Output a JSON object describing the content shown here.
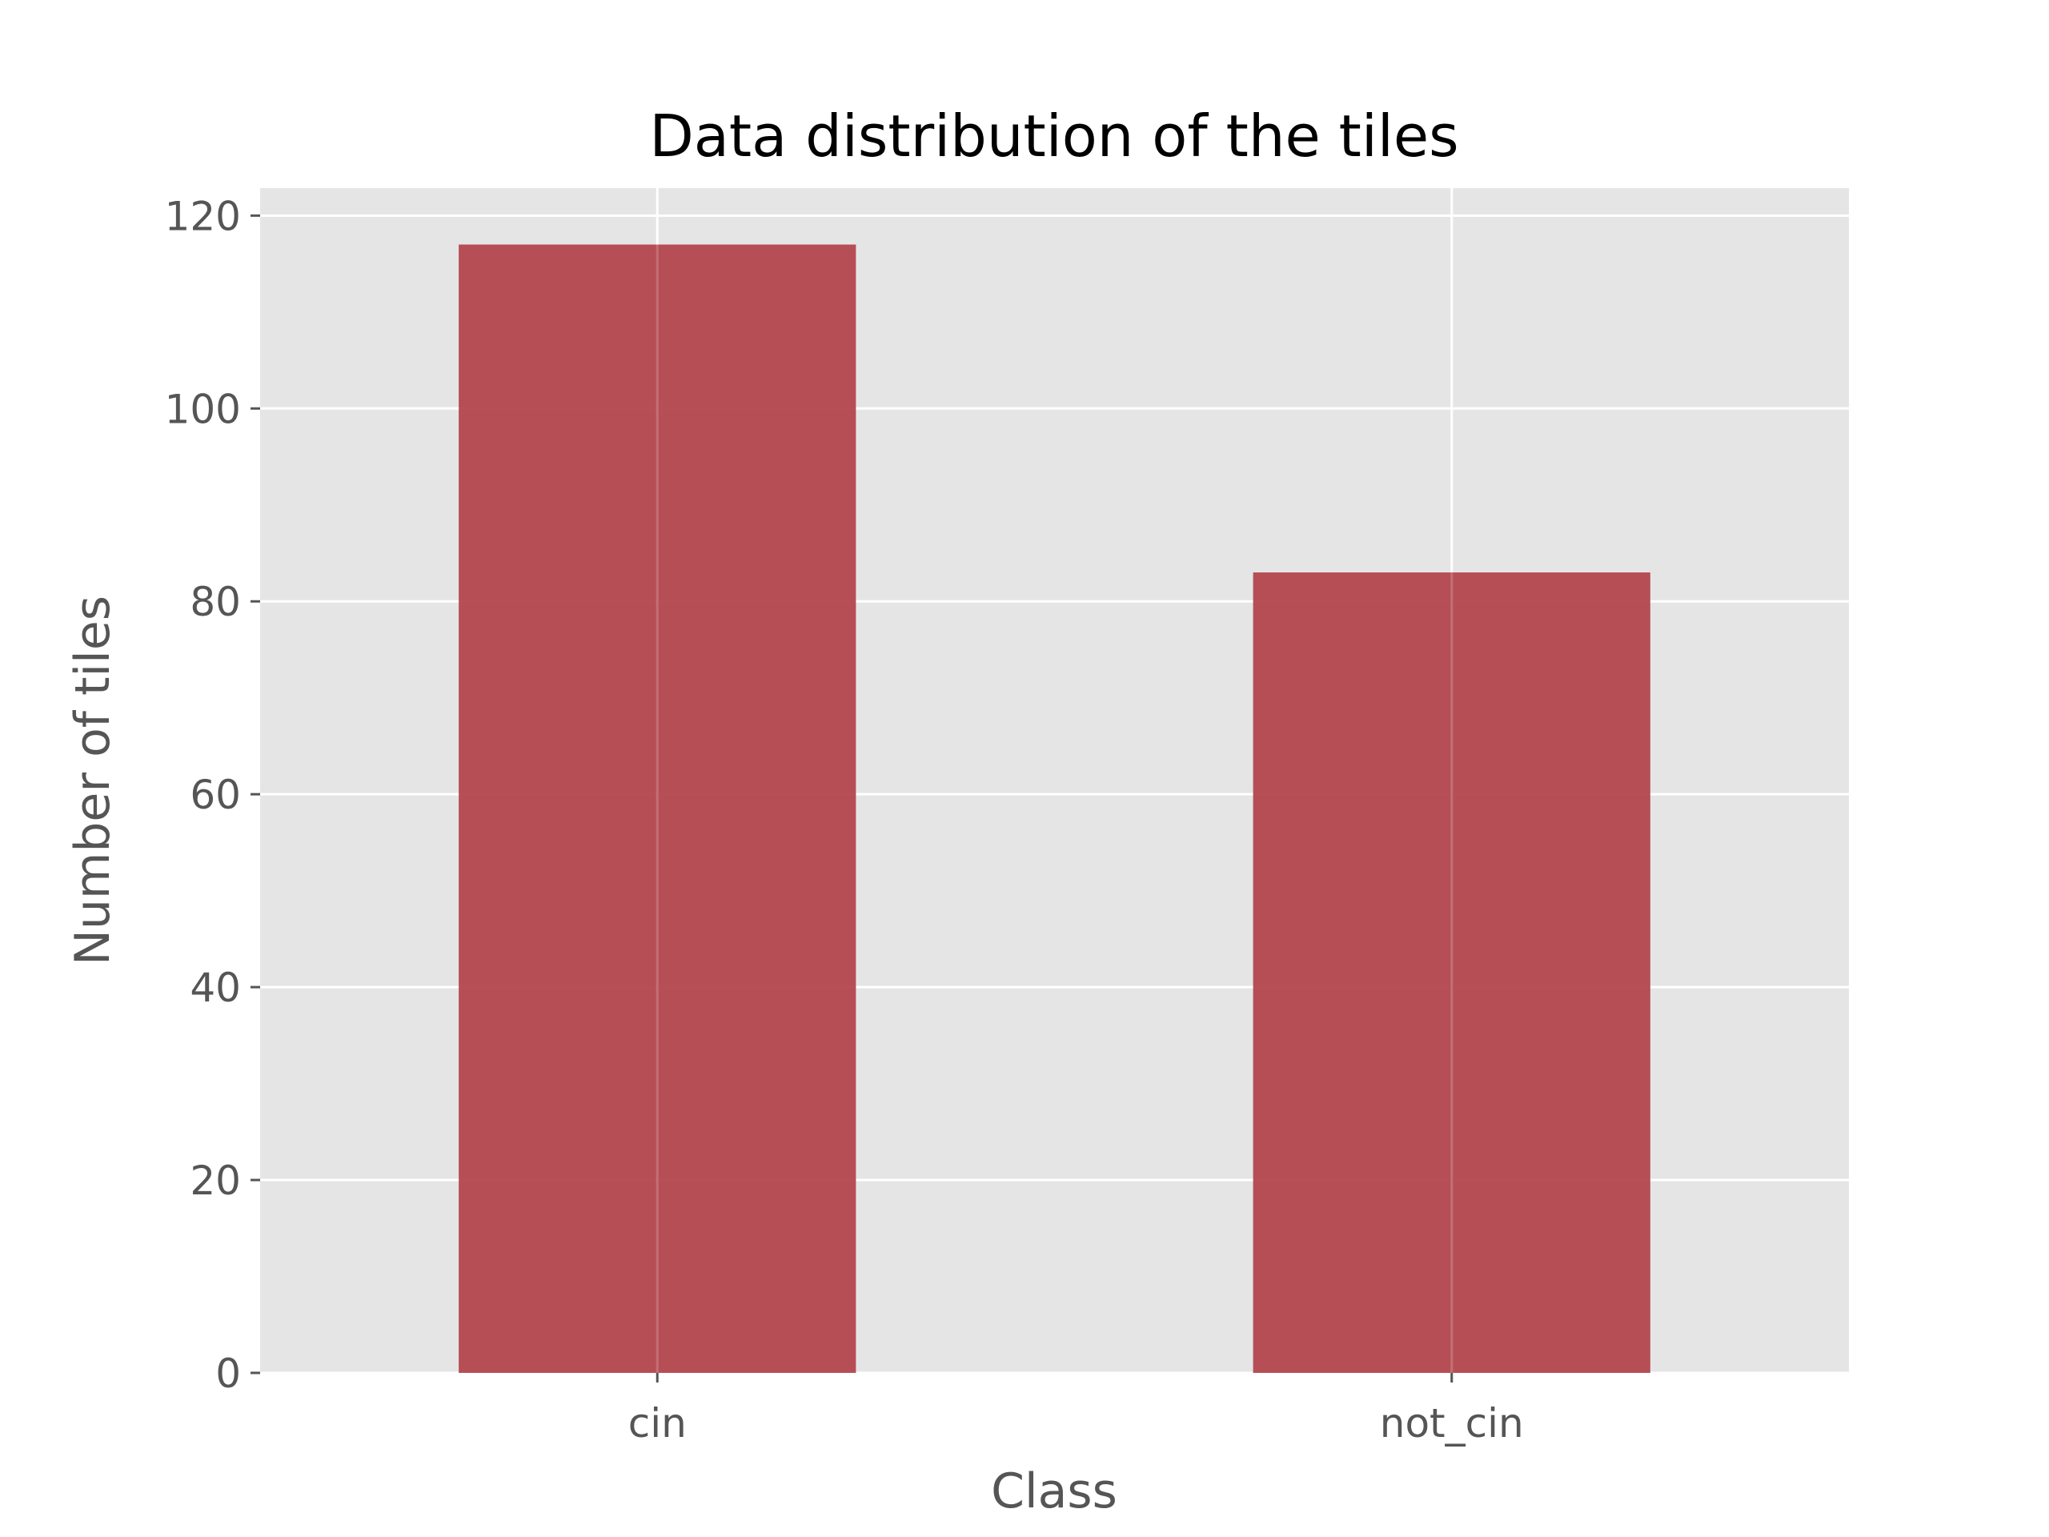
{
  "chart_data": {
    "type": "bar",
    "title": "Data distribution of the tiles",
    "xlabel": "Class",
    "ylabel": "Number of tiles",
    "categories": [
      "cin",
      "not_cin"
    ],
    "values": [
      117,
      83
    ],
    "ylim": [
      0,
      122.85
    ],
    "yticks": [
      "0",
      "20",
      "40",
      "60",
      "80",
      "100",
      "120"
    ],
    "ytick_values": [
      0,
      20,
      40,
      60,
      80,
      100,
      120
    ],
    "grid": true,
    "bar_color": "#b2474d",
    "plot_background": "#e5e5e5",
    "grid_color": "#ffffff",
    "tick_color": "#555555"
  }
}
